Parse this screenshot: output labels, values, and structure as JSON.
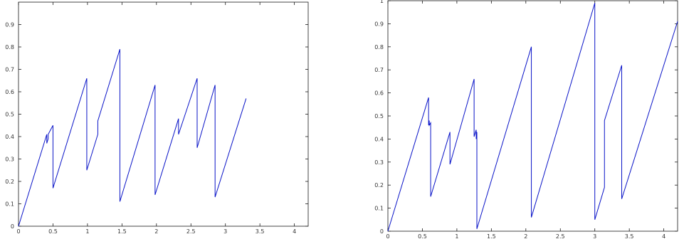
{
  "colors": {
    "line": "#0a14c8",
    "axes": "#1a1a1a",
    "background": "#ffffff"
  },
  "chart_data": [
    {
      "type": "line",
      "title": "",
      "xlabel": "",
      "ylabel": "",
      "xlim": [
        0,
        4.2
      ],
      "ylim": [
        0,
        1
      ],
      "grid": false,
      "xticks": [
        0,
        0.5,
        1,
        1.5,
        2,
        2.5,
        3,
        3.5,
        4
      ],
      "xtick_labels": [
        "0",
        "0.5",
        "1",
        "1.5",
        "2",
        "2.5",
        "3",
        "3.5",
        "4"
      ],
      "yticks": [
        0,
        0.1,
        0.2,
        0.3,
        0.4,
        0.5,
        0.6,
        0.7,
        0.8,
        0.9
      ],
      "ytick_labels": [
        "0",
        "0.1",
        "0.2",
        "0.3",
        "0.4",
        "0.5",
        "0.6",
        "0.7",
        "0.8",
        "0.9"
      ],
      "series": [
        {
          "x": [
            0,
            0.41,
            0.41,
            0.43,
            0.43,
            0.5,
            0.5,
            0.99,
            0.99,
            1.15,
            1.15,
            1.47,
            1.47,
            1.98,
            1.98,
            2.32,
            2.32,
            2.59,
            2.59,
            2.85,
            2.85,
            3.3
          ],
          "y": [
            0,
            0.41,
            0.37,
            0.39,
            0.41,
            0.45,
            0.17,
            0.66,
            0.25,
            0.41,
            0.47,
            0.79,
            0.11,
            0.63,
            0.14,
            0.48,
            0.41,
            0.66,
            0.35,
            0.63,
            0.13,
            0.57
          ]
        }
      ]
    },
    {
      "type": "line",
      "title": "",
      "xlabel": "",
      "ylabel": "",
      "xlim": [
        0,
        4.2
      ],
      "ylim": [
        0,
        1
      ],
      "grid": false,
      "xticks": [
        0,
        0.5,
        1,
        1.5,
        2,
        2.5,
        3,
        3.5,
        4
      ],
      "xtick_labels": [
        "0",
        "0.5",
        "1",
        "1.5",
        "2",
        "2.5",
        "3",
        "3.5",
        "4"
      ],
      "yticks": [
        0,
        0.1,
        0.2,
        0.3,
        0.4,
        0.5,
        0.6,
        0.7,
        0.8,
        0.9,
        1
      ],
      "ytick_labels": [
        "0",
        "0.1",
        "0.2",
        "0.3",
        "0.4",
        "0.5",
        "0.6",
        "0.7",
        "0.8",
        "0.9",
        "1"
      ],
      "series": [
        {
          "x": [
            0,
            0.59,
            0.59,
            0.6,
            0.6,
            0.62,
            0.62,
            0.9,
            0.9,
            1.25,
            1.25,
            1.28,
            1.28,
            1.29,
            1.29,
            2.08,
            2.08,
            3.0,
            3.0,
            3.14,
            3.14,
            3.39,
            3.39,
            4.2
          ],
          "y": [
            0,
            0.58,
            0.46,
            0.48,
            0.46,
            0.47,
            0.15,
            0.43,
            0.29,
            0.66,
            0.41,
            0.44,
            0.4,
            0.43,
            0.01,
            0.8,
            0.06,
            0.99,
            0.05,
            0.19,
            0.48,
            0.72,
            0.14,
            0.91
          ]
        }
      ]
    }
  ]
}
